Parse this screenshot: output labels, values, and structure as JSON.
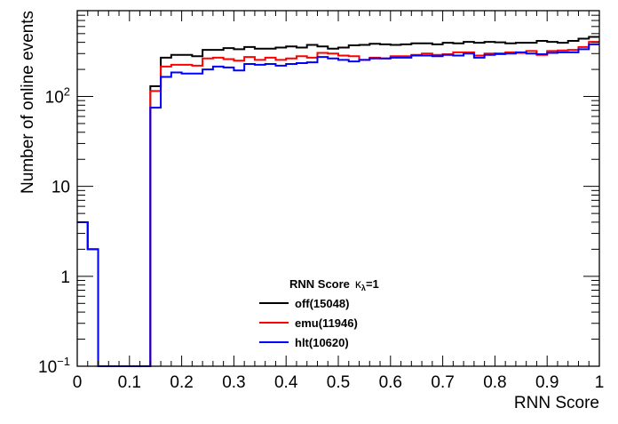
{
  "chart_data": {
    "type": "histogram-step",
    "xlabel": "RNN Score",
    "ylabel": "Number of online events",
    "xlim": [
      0,
      1
    ],
    "ylim": [
      0.1,
      900
    ],
    "yscale": "log",
    "grid": false,
    "x_ticks": [
      "0",
      "0.1",
      "0.2",
      "0.3",
      "0.4",
      "0.5",
      "0.6",
      "0.7",
      "0.8",
      "0.9",
      "1"
    ],
    "y_ticks": [
      {
        "value": 0.1,
        "base": "10",
        "exp": "−1"
      },
      {
        "value": 1,
        "label": "1"
      },
      {
        "value": 10,
        "label": "10"
      },
      {
        "value": 100,
        "base": "10",
        "exp": "2"
      }
    ],
    "bins": 50,
    "legend": {
      "title": "RNN Score",
      "title_symbol": "κ",
      "title_sub": "λ",
      "title_eq": "=1",
      "placement": "bottom-center",
      "entries": [
        {
          "label": "off(15048)",
          "color": "#000000"
        },
        {
          "label": "emu(11946)",
          "color": "#ff0000"
        },
        {
          "label": "hlt(10620)",
          "color": "#0000ff"
        }
      ]
    },
    "series": [
      {
        "name": "off(15048)",
        "color": "#000000",
        "values": [
          4,
          2,
          0,
          0,
          0,
          0,
          0,
          130,
          270,
          290,
          290,
          280,
          330,
          330,
          345,
          335,
          355,
          340,
          340,
          350,
          360,
          350,
          375,
          360,
          340,
          350,
          370,
          375,
          385,
          380,
          375,
          380,
          390,
          390,
          380,
          395,
          390,
          405,
          395,
          405,
          400,
          390,
          395,
          395,
          415,
          405,
          395,
          415,
          440,
          460
        ]
      },
      {
        "name": "emu(11946)",
        "color": "#ff0000",
        "values": [
          4,
          2,
          0,
          0,
          0,
          0,
          0,
          115,
          215,
          225,
          225,
          220,
          265,
          270,
          260,
          250,
          275,
          255,
          270,
          255,
          265,
          280,
          270,
          305,
          300,
          285,
          280,
          255,
          270,
          265,
          280,
          280,
          290,
          300,
          290,
          295,
          310,
          310,
          285,
          300,
          295,
          310,
          305,
          320,
          290,
          320,
          325,
          330,
          355,
          405
        ]
      },
      {
        "name": "hlt(10620)",
        "color": "#0000ff",
        "values": [
          4,
          2,
          0,
          0,
          0,
          0,
          0,
          75,
          165,
          185,
          180,
          180,
          200,
          215,
          210,
          195,
          230,
          225,
          230,
          220,
          230,
          235,
          240,
          275,
          265,
          255,
          245,
          255,
          265,
          265,
          270,
          270,
          285,
          285,
          280,
          290,
          285,
          300,
          270,
          290,
          300,
          300,
          310,
          300,
          295,
          305,
          310,
          310,
          335,
          380
        ]
      }
    ]
  }
}
